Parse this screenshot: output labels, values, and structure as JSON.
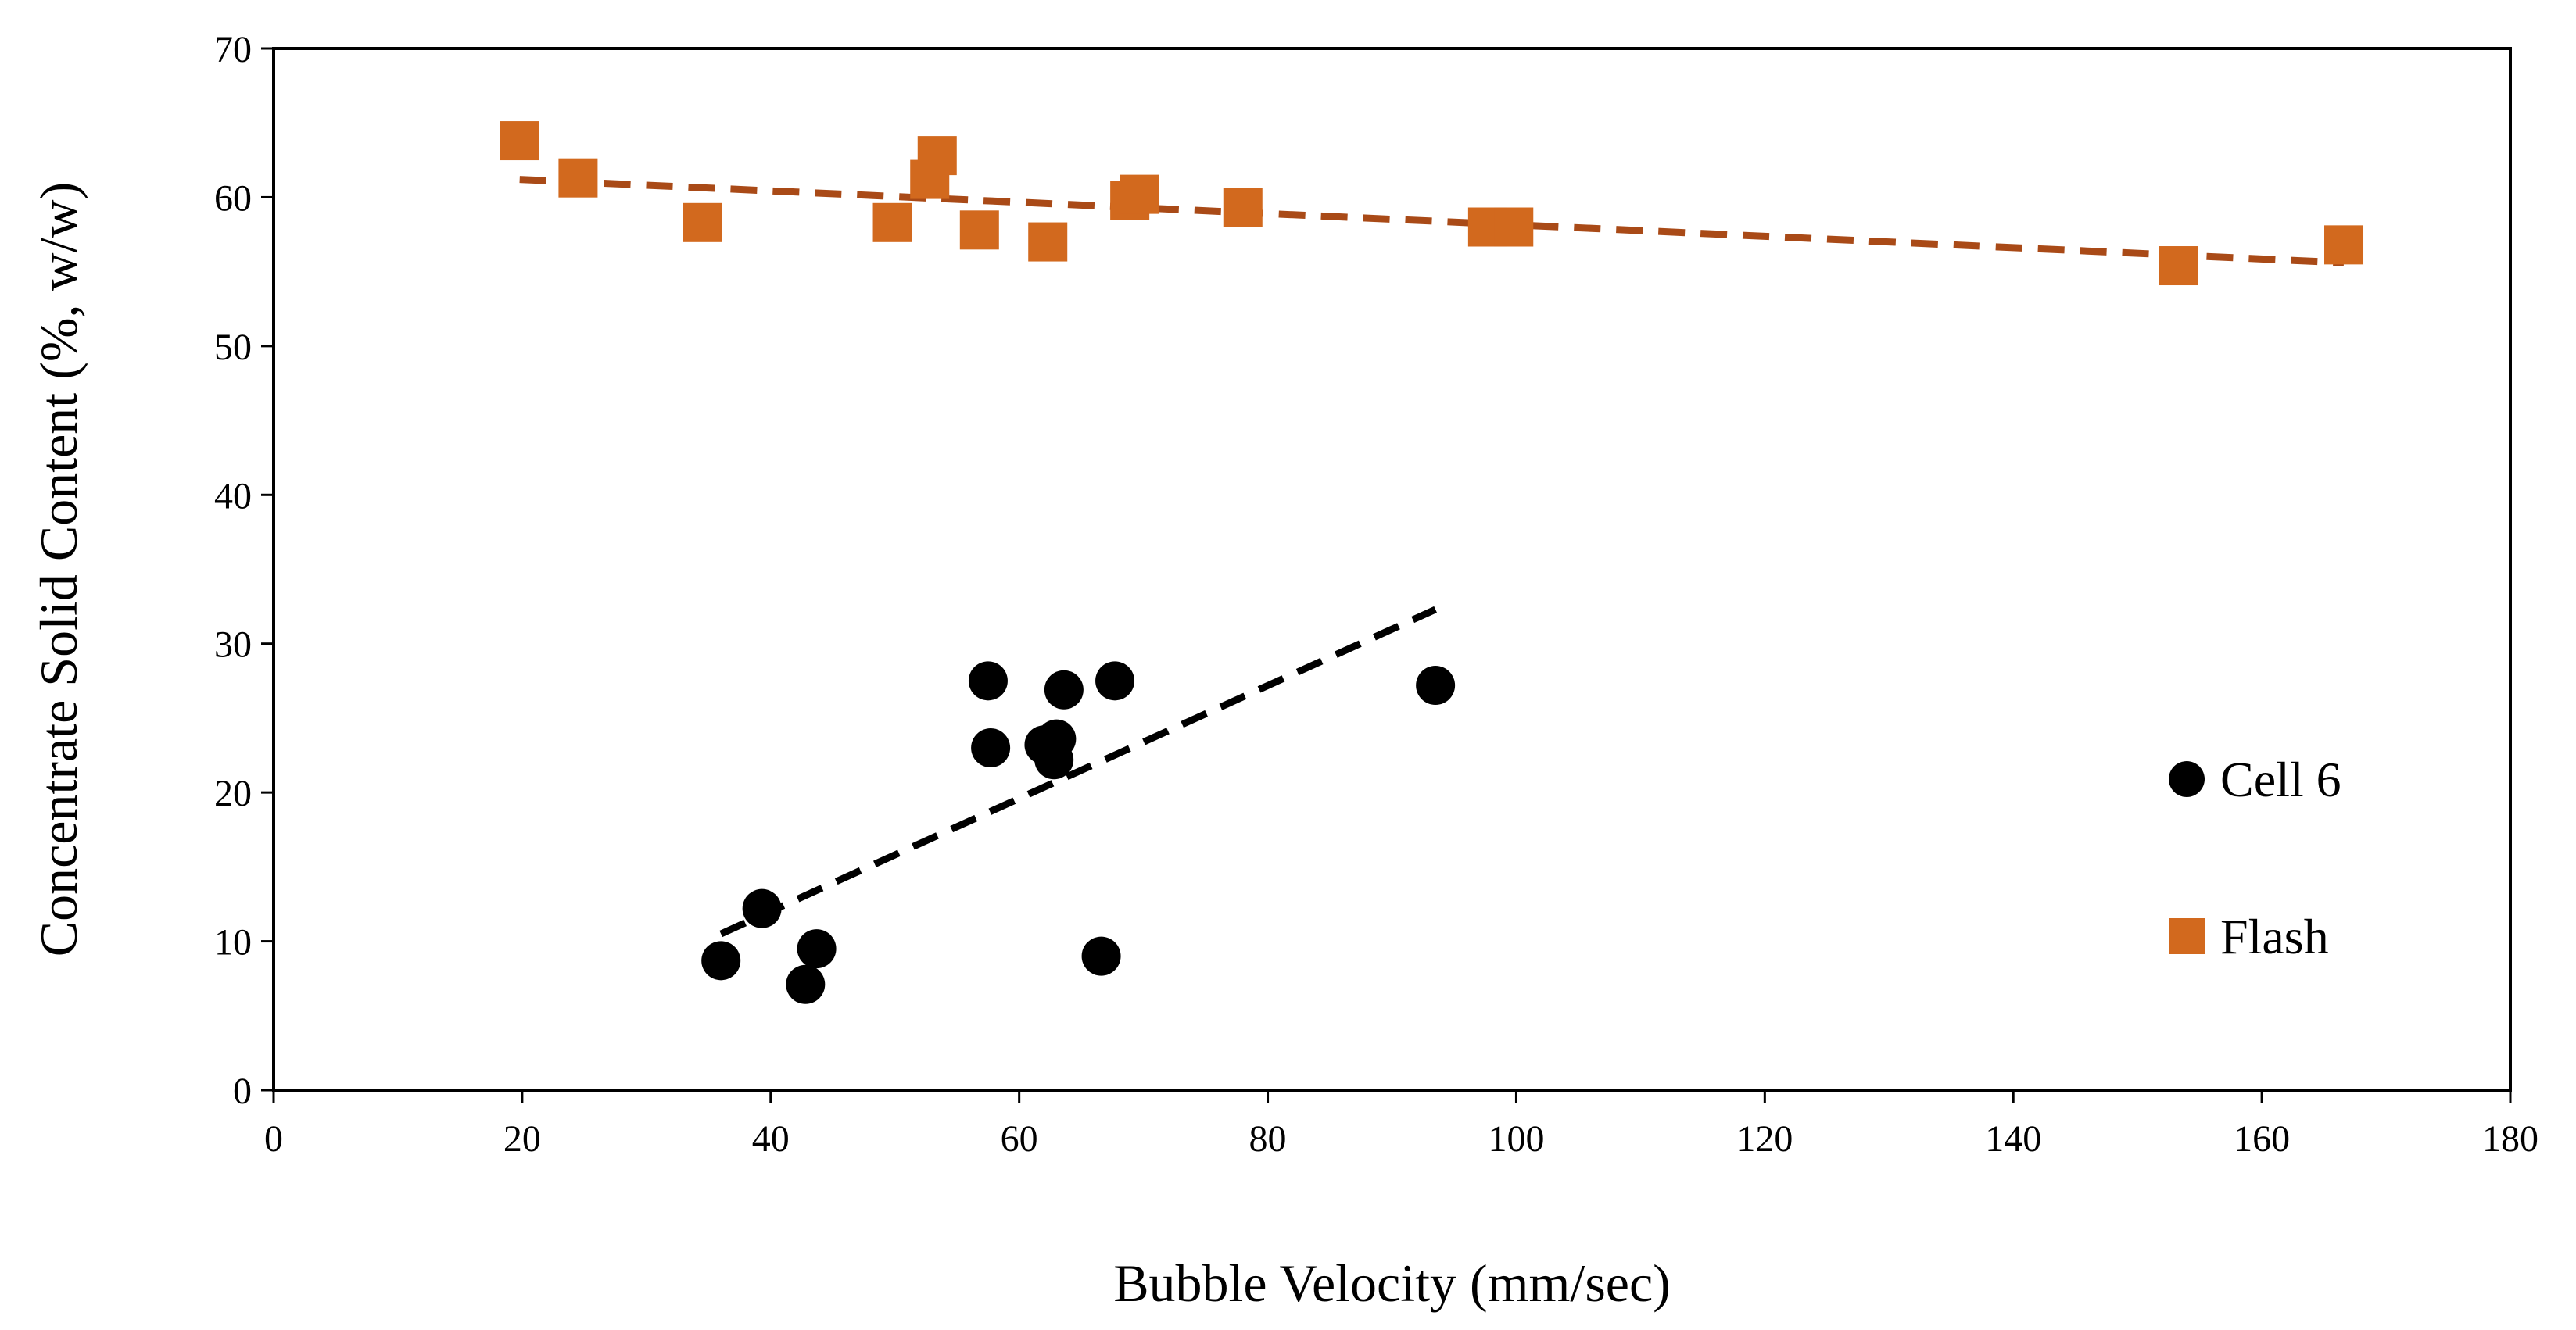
{
  "chart_data": {
    "type": "scatter",
    "title": "",
    "xlabel": "Bubble Velocity (mm/sec)",
    "ylabel": "Concentrate Solid Content (%, w/w)",
    "xlim": [
      0,
      180
    ],
    "ylim": [
      0,
      70
    ],
    "xticks": [
      "0",
      "20",
      "40",
      "60",
      "80",
      "100",
      "120",
      "140",
      "160",
      "180"
    ],
    "yticks": [
      "0",
      "10",
      "20",
      "30",
      "40",
      "50",
      "60",
      "70"
    ],
    "grid": false,
    "legend_position": "right",
    "series": [
      {
        "name": "Cell 6",
        "marker": "circle",
        "color": "#000000",
        "points": [
          [
            36.0,
            8.7
          ],
          [
            39.3,
            12.2
          ],
          [
            42.8,
            7.1
          ],
          [
            43.7,
            9.5
          ],
          [
            57.5,
            27.5
          ],
          [
            57.7,
            23.0
          ],
          [
            62.0,
            23.2
          ],
          [
            62.8,
            22.2
          ],
          [
            63.0,
            23.6
          ],
          [
            63.6,
            26.9
          ],
          [
            66.6,
            9.0
          ],
          [
            67.7,
            27.5
          ],
          [
            93.5,
            27.2
          ]
        ],
        "trendline": {
          "style": "dashed",
          "color": "#000000",
          "from": [
            36.0,
            10.5
          ],
          "to": [
            93.5,
            32.3
          ]
        }
      },
      {
        "name": "Flash",
        "marker": "square",
        "color": "#D2691E",
        "points": [
          [
            19.8,
            63.8
          ],
          [
            24.5,
            61.3
          ],
          [
            34.5,
            58.3
          ],
          [
            49.8,
            58.3
          ],
          [
            52.8,
            61.2
          ],
          [
            53.4,
            62.8
          ],
          [
            56.8,
            57.8
          ],
          [
            62.3,
            57.0
          ],
          [
            68.9,
            59.8
          ],
          [
            69.7,
            60.2
          ],
          [
            78.0,
            59.3
          ],
          [
            97.7,
            58.0
          ],
          [
            99.8,
            58.0
          ],
          [
            153.3,
            55.4
          ],
          [
            166.6,
            56.8
          ]
        ],
        "trendline": {
          "style": "dashed",
          "color": "#A94A17",
          "from": [
            19.8,
            61.2
          ],
          "to": [
            166.6,
            55.6
          ]
        }
      }
    ]
  }
}
